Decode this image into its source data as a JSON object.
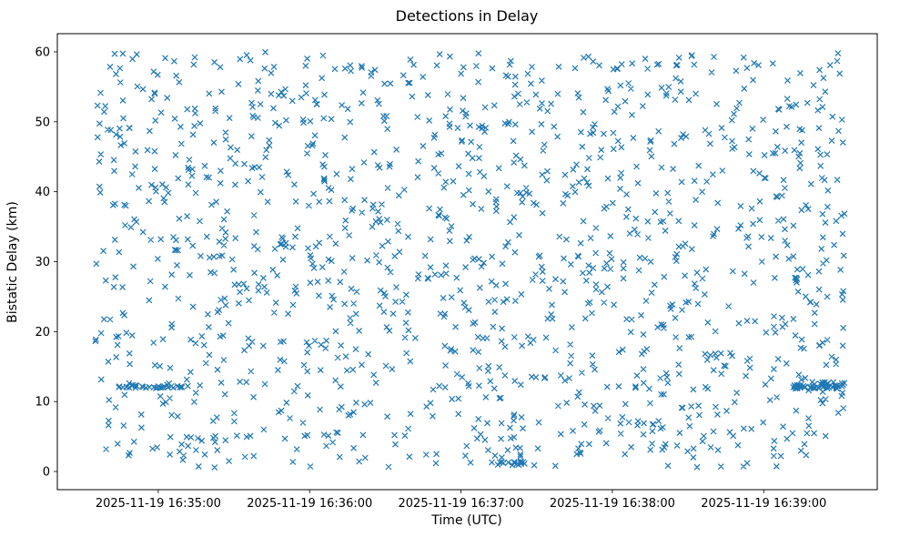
{
  "chart_data": {
    "type": "scatter",
    "title": "Detections in Delay",
    "xlabel": "Time (UTC)",
    "ylabel": "Bistatic Delay (km)",
    "marker": "x",
    "marker_color": "#1f77b4",
    "background": "#ffffff",
    "grid": false,
    "legend": "none",
    "x_axis": {
      "kind": "time",
      "unit": "seconds since 2025-11-19 16:34:00 UTC",
      "min": 20,
      "max": 345,
      "tick_values": [
        60,
        120,
        180,
        240,
        300
      ],
      "tick_labels": [
        "2025-11-19 16:35:00",
        "2025-11-19 16:36:00",
        "2025-11-19 16:37:00",
        "2025-11-19 16:38:00",
        "2025-11-19 16:39:00"
      ]
    },
    "y_axis": {
      "min": -2.6,
      "max": 62.6,
      "tick_values": [
        0,
        10,
        20,
        30,
        40,
        50,
        60
      ],
      "tick_labels": [
        "0",
        "10",
        "20",
        "30",
        "40",
        "50",
        "60"
      ]
    },
    "points": {
      "distribution": "uniform-random",
      "n": 1400,
      "x_range": [
        35,
        332
      ],
      "y_range": [
        0.5,
        60
      ],
      "seed": 20251119
    },
    "clusters": [
      {
        "y": 12.2,
        "x_range": [
          43,
          72
        ],
        "count": 32,
        "y_jitter": 0.6
      },
      {
        "y": 12.1,
        "x_range": [
          312,
          332
        ],
        "count": 42,
        "y_jitter": 0.5
      },
      {
        "y": 12.6,
        "x_range": [
          318,
          332
        ],
        "count": 14,
        "y_jitter": 0.4
      },
      {
        "y": 1.2,
        "x_range": [
          192,
          206
        ],
        "count": 15,
        "y_jitter": 0.6
      }
    ]
  }
}
